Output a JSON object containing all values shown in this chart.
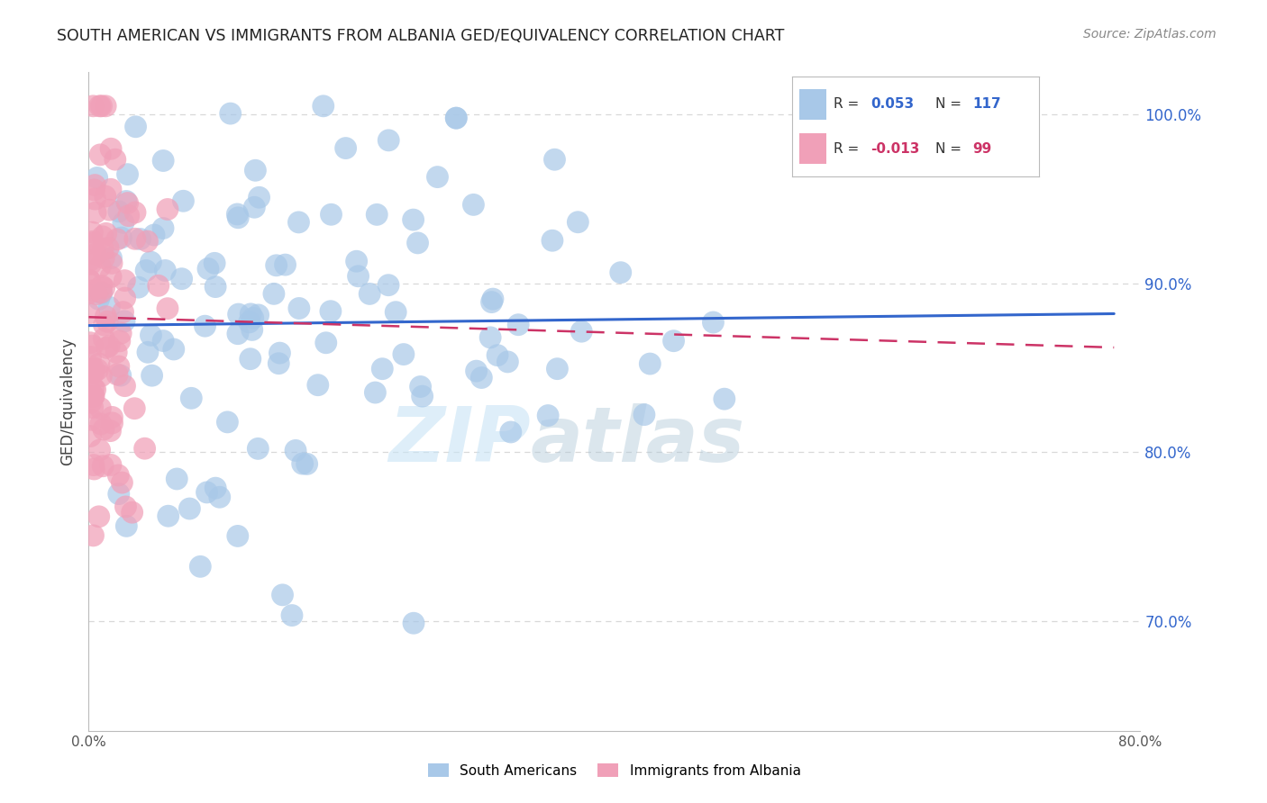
{
  "title": "SOUTH AMERICAN VS IMMIGRANTS FROM ALBANIA GED/EQUIVALENCY CORRELATION CHART",
  "source": "Source: ZipAtlas.com",
  "ylabel": "GED/Equivalency",
  "ytick_labels": [
    "70.0%",
    "80.0%",
    "90.0%",
    "100.0%"
  ],
  "ytick_values": [
    0.7,
    0.8,
    0.9,
    1.0
  ],
  "xlim": [
    0.0,
    0.8
  ],
  "ylim": [
    0.635,
    1.025
  ],
  "legend_blue_r_val": "0.053",
  "legend_blue_n_val": "117",
  "legend_pink_r_val": "-0.013",
  "legend_pink_n_val": "99",
  "blue_color": "#a8c8e8",
  "blue_line_color": "#3366cc",
  "pink_color": "#f0a0b8",
  "pink_line_color": "#cc3366",
  "watermark_color": "#c8e4f5",
  "background_color": "#ffffff",
  "grid_color": "#d8d8d8",
  "blue_R": 0.053,
  "blue_N": 117,
  "pink_R": -0.013,
  "pink_N": 99,
  "blue_trend_x0": 0.0,
  "blue_trend_x1": 0.78,
  "blue_trend_y0": 0.875,
  "blue_trend_y1": 0.882,
  "pink_trend_x0": 0.0,
  "pink_trend_x1": 0.78,
  "pink_trend_y0": 0.88,
  "pink_trend_y1": 0.862
}
